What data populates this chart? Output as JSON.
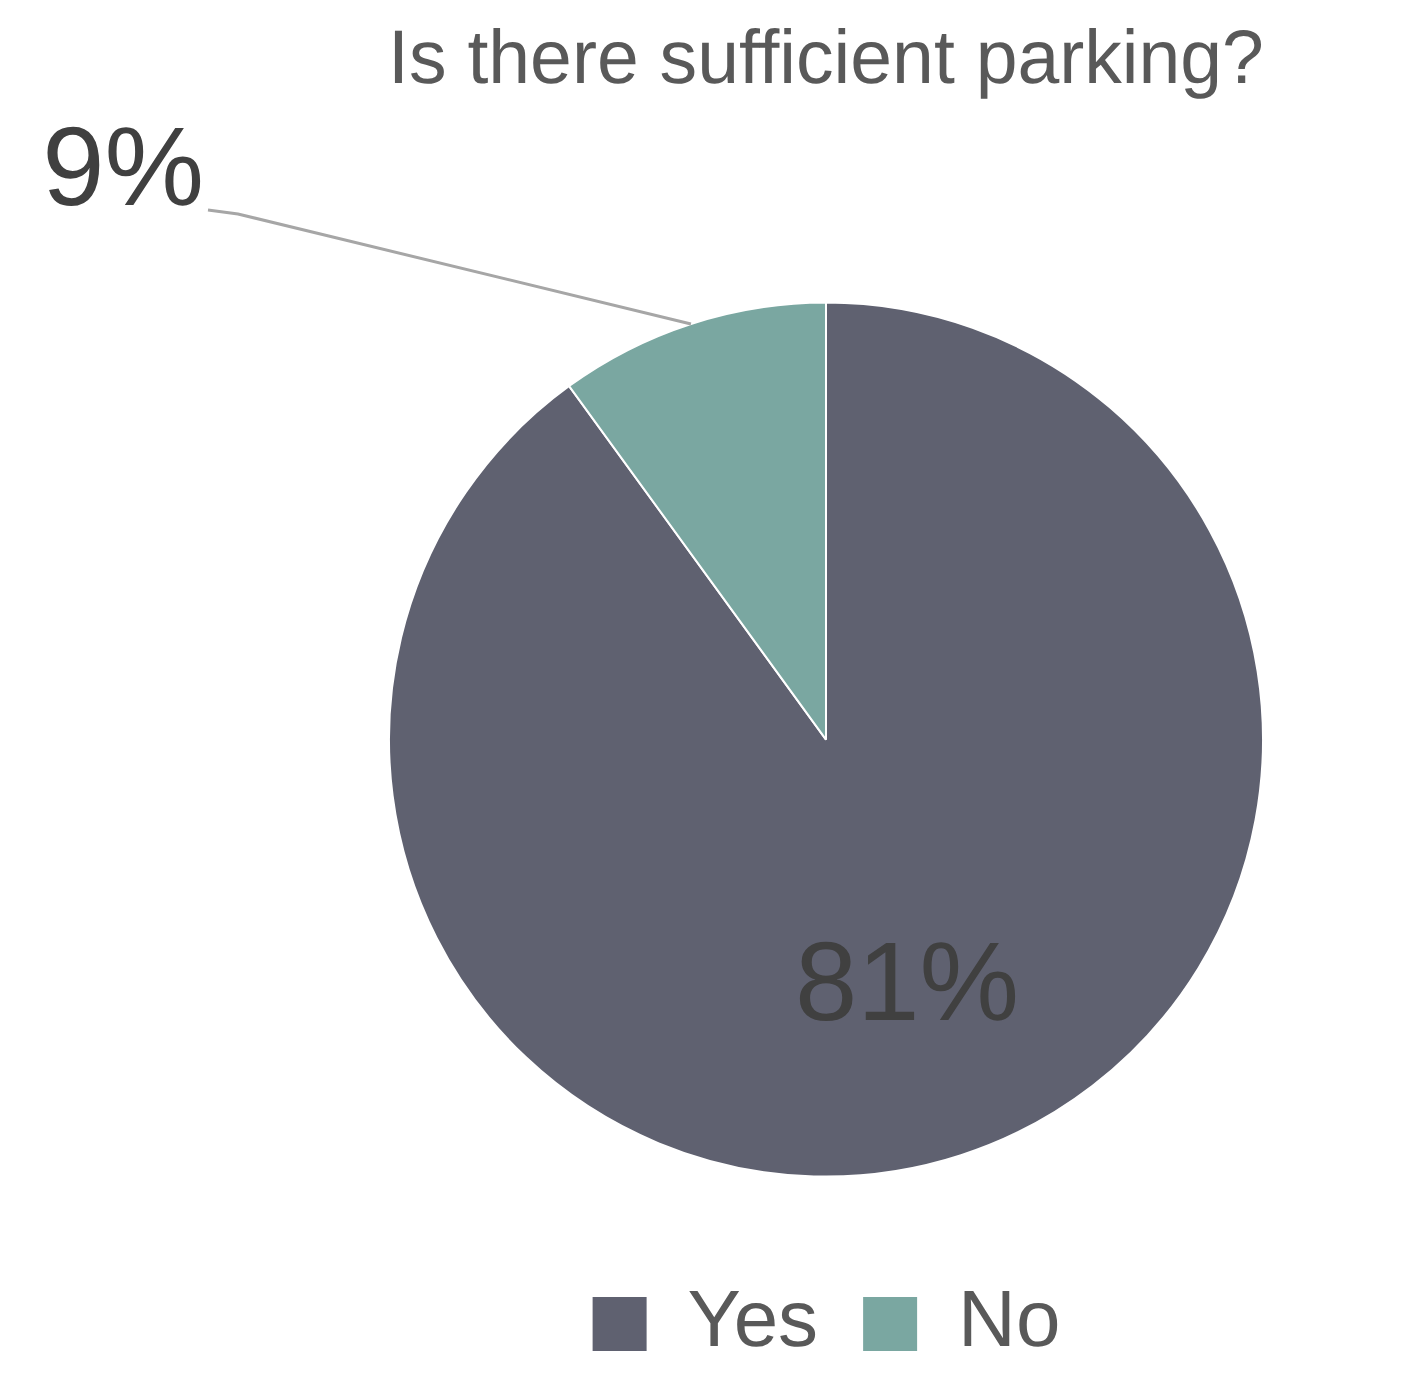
{
  "chart_data": {
    "type": "pie",
    "title": "Is there sufficient parking?",
    "categories": [
      "Yes",
      "No"
    ],
    "values": [
      81,
      9
    ],
    "value_labels": [
      "81%",
      "9%"
    ],
    "colors": [
      "#5f6170",
      "#7aa7a1"
    ],
    "legend": "bottom"
  }
}
